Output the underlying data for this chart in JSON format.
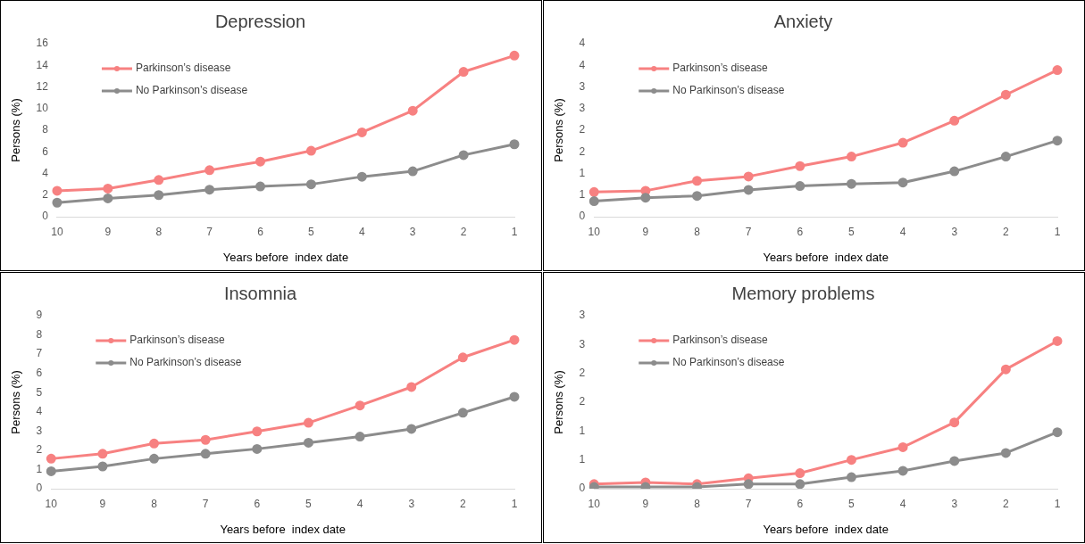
{
  "chart_data": [
    {
      "type": "line",
      "title": "Depression",
      "xlabel": "Years before  index date",
      "ylabel": "Persons (%)",
      "categories": [
        "10",
        "9",
        "8",
        "7",
        "6",
        "5",
        "4",
        "3",
        "2",
        "1"
      ],
      "series": [
        {
          "name": "Parkinson’s disease",
          "color": "#f78181",
          "values": [
            2.4,
            2.6,
            3.4,
            4.3,
            5.1,
            6.1,
            7.8,
            9.8,
            13.4,
            14.9
          ]
        },
        {
          "name": "No Parkinson’s disease",
          "color": "#8c8c8c",
          "values": [
            1.3,
            1.7,
            2.0,
            2.5,
            2.8,
            3.0,
            3.7,
            4.2,
            5.7,
            6.7
          ]
        }
      ],
      "ylim": [
        0,
        16
      ],
      "yticks": [
        0,
        2,
        4,
        6,
        8,
        10,
        12,
        14,
        16
      ],
      "grid": false,
      "legend": "top left",
      "marker": "circle",
      "line_style": "solid"
    },
    {
      "type": "line",
      "title": "Anxiety",
      "xlabel": "Years before  index date",
      "ylabel": "Persons (%)",
      "categories": [
        "10",
        "9",
        "8",
        "7",
        "6",
        "5",
        "4",
        "3",
        "2",
        "1"
      ],
      "series": [
        {
          "name": "Parkinson’s disease",
          "color": "#f78181",
          "values": [
            0.57,
            0.6,
            0.83,
            0.93,
            1.17,
            1.39,
            1.71,
            2.22,
            2.82,
            3.39
          ]
        },
        {
          "name": "No Parkinson’s disease",
          "color": "#8c8c8c",
          "values": [
            0.36,
            0.44,
            0.48,
            0.62,
            0.71,
            0.76,
            0.79,
            1.05,
            1.39,
            1.76
          ]
        }
      ],
      "ylim": [
        0,
        4
      ],
      "yticks": [
        0,
        {
          "value": 0.5,
          "label": "1"
        },
        1,
        {
          "value": 1.5,
          "label": "2"
        },
        2,
        {
          "value": 2.5,
          "label": "3"
        },
        3,
        {
          "value": 3.5,
          "label": "4"
        },
        4
      ],
      "grid": false,
      "legend": "top left",
      "marker": "circle",
      "line_style": "solid"
    },
    {
      "type": "line",
      "title": "Insomnia",
      "xlabel": "Years before  index date",
      "ylabel": "Persons (%)",
      "categories": [
        "10",
        "9",
        "8",
        "7",
        "6",
        "5",
        "4",
        "3",
        "2",
        "1"
      ],
      "series": [
        {
          "name": "Parkinson’s disease",
          "color": "#f78181",
          "values": [
            1.56,
            1.82,
            2.35,
            2.54,
            2.98,
            3.43,
            4.33,
            5.29,
            6.83,
            7.74
          ]
        },
        {
          "name": "No Parkinson’s disease",
          "color": "#8c8c8c",
          "values": [
            0.91,
            1.16,
            1.56,
            1.82,
            2.07,
            2.39,
            2.71,
            3.11,
            3.95,
            4.78
          ]
        }
      ],
      "ylim": [
        0,
        9
      ],
      "yticks": [
        0,
        1,
        2,
        3,
        4,
        5,
        6,
        7,
        8,
        9
      ],
      "grid": false,
      "legend": "top left",
      "marker": "circle",
      "line_style": "solid"
    },
    {
      "type": "line",
      "title": "Memory problems",
      "xlabel": "Years before  index date",
      "ylabel": "Persons (%)",
      "categories": [
        "10",
        "9",
        "8",
        "7",
        "6",
        "5",
        "4",
        "3",
        "2",
        "1"
      ],
      "series": [
        {
          "name": "Parkinson’s disease",
          "color": "#f78181",
          "values": [
            0.08,
            0.11,
            0.08,
            0.18,
            0.27,
            0.5,
            0.72,
            1.15,
            2.07,
            2.56
          ]
        },
        {
          "name": "No Parkinson’s disease",
          "color": "#8c8c8c",
          "values": [
            0.03,
            0.03,
            0.03,
            0.08,
            0.08,
            0.2,
            0.31,
            0.48,
            0.62,
            0.98
          ]
        }
      ],
      "ylim": [
        0,
        3
      ],
      "yticks": [
        0,
        {
          "value": 0.5,
          "label": "1"
        },
        1,
        {
          "value": 1.5,
          "label": "2"
        },
        2,
        {
          "value": 2.5,
          "label": "3"
        },
        3
      ],
      "grid": false,
      "legend": "top left",
      "marker": "circle",
      "line_style": "solid"
    }
  ]
}
